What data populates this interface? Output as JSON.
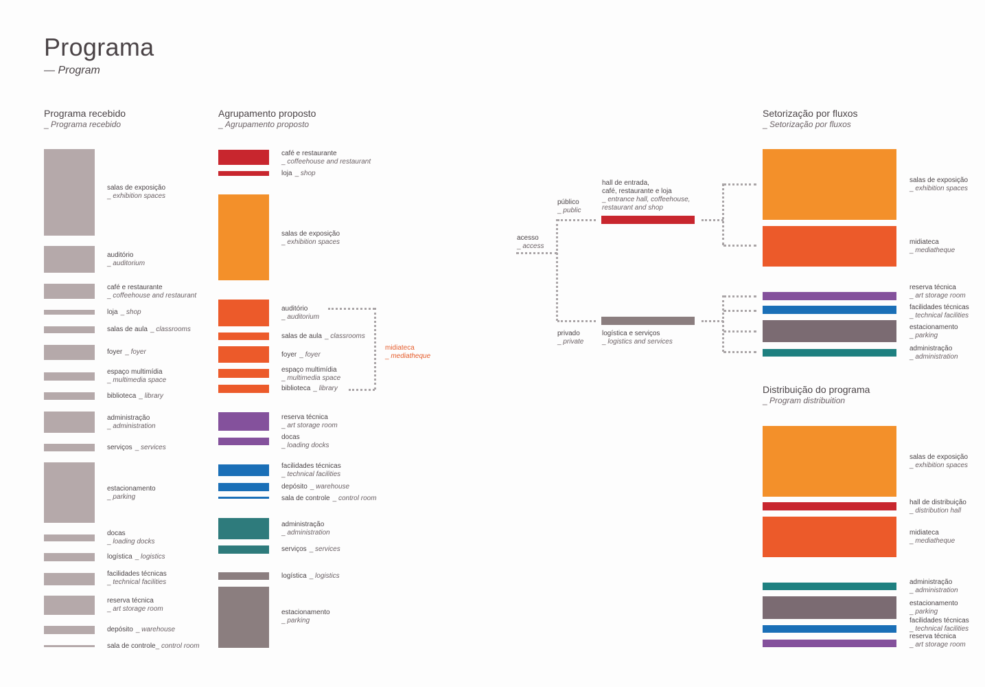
{
  "page": {
    "title": "Programa",
    "subtitle": "— Program"
  },
  "colors": {
    "grey": "#b5a9aa",
    "red": "#c8262e",
    "orange": "#f3902a",
    "orange_red": "#ec5a2a",
    "purple": "#84519c",
    "blue": "#1a6fb7",
    "teal": "#2e7b7c",
    "mauve": "#8b7e7f"
  },
  "received": {
    "title": "Programa recebido",
    "title_en": "Programa recebido",
    "items": [
      {
        "pt": "salas de exposição",
        "en": "exhibition spaces"
      },
      {
        "pt": "auditório",
        "en": "auditorium"
      },
      {
        "pt": "café e restaurante",
        "en": "coffeehouse and restaurant"
      },
      {
        "pt": "loja",
        "en": "shop"
      },
      {
        "pt": "salas de aula",
        "en": "classrooms"
      },
      {
        "pt": "foyer",
        "en": "foyer"
      },
      {
        "pt": "espaço multimídia",
        "en": "multimedia space"
      },
      {
        "pt": "biblioteca",
        "en": "library"
      },
      {
        "pt": "administração",
        "en": "administration"
      },
      {
        "pt": "serviços",
        "en": "services"
      },
      {
        "pt": "estacionamento",
        "en": "parking"
      },
      {
        "pt": "docas",
        "en": "loading docks"
      },
      {
        "pt": "logística",
        "en": "logistics"
      },
      {
        "pt": "facilidades técnicas",
        "en": "technical facilities"
      },
      {
        "pt": "reserva técnica",
        "en": "art storage room"
      },
      {
        "pt": "depósito",
        "en": "warehouse"
      },
      {
        "pt": "sala de controle",
        "en": "control room"
      }
    ]
  },
  "grouping": {
    "title": "Agrupamento proposto",
    "title_en": "Agrupamento proposto",
    "items": [
      {
        "pt": "café e restaurante",
        "en": "coffeehouse and restaurant"
      },
      {
        "pt": "loja",
        "en": "shop"
      },
      {
        "pt": "salas de exposição",
        "en": "exhibition spaces"
      },
      {
        "pt": "auditório",
        "en": "auditorium"
      },
      {
        "pt": "salas de aula",
        "en": "classrooms"
      },
      {
        "pt": "foyer",
        "en": "foyer"
      },
      {
        "pt": "espaço multimídia",
        "en": "multimedia space"
      },
      {
        "pt": "biblioteca",
        "en": "library"
      },
      {
        "pt": "reserva técnica",
        "en": "art storage room"
      },
      {
        "pt": "docas",
        "en": "loading docks"
      },
      {
        "pt": "facilidades técnicas",
        "en": "technical facilities"
      },
      {
        "pt": "depósito",
        "en": "warehouse"
      },
      {
        "pt": "sala de controle",
        "en": "control room"
      },
      {
        "pt": "administração",
        "en": "administration"
      },
      {
        "pt": "serviços",
        "en": "services"
      },
      {
        "pt": "logística",
        "en": "logistics"
      },
      {
        "pt": "estacionamento",
        "en": "parking"
      }
    ],
    "mediatheque": {
      "pt": "midiateca",
      "en": "mediatheque"
    }
  },
  "flows": {
    "title": "Setorização por fluxos",
    "title_en": "Setorização por fluxos",
    "access": {
      "pt": "acesso",
      "en": "access"
    },
    "public": {
      "pt": "público",
      "en": "public"
    },
    "private": {
      "pt": "privado",
      "en": "private"
    },
    "hall": {
      "pt_line1": "hall de entrada,",
      "pt_line2": "café, restaurante e loja",
      "en_line1": "entrance hall, coffeehouse,",
      "en_line2": "restaurant and shop"
    },
    "logistics": {
      "pt": "logística e serviços",
      "en": "logistics and services"
    },
    "items": [
      {
        "pt": "salas de exposição",
        "en": "exhibition spaces"
      },
      {
        "pt": "midiateca",
        "en": "mediatheque"
      },
      {
        "pt": "reserva técnica",
        "en": "art storage room"
      },
      {
        "pt": "facilidades técnicas",
        "en": "technical facilities"
      },
      {
        "pt": "estacionamento",
        "en": "parking"
      },
      {
        "pt": "administração",
        "en": "administration"
      }
    ]
  },
  "distribution": {
    "title": "Distribuição do programa",
    "title_en": "Program distribuition",
    "items": [
      {
        "pt": "salas de exposição",
        "en": "exhibition spaces"
      },
      {
        "pt": "hall de distribuição",
        "en": "distribution hall"
      },
      {
        "pt": "midiateca",
        "en": "mediatheque"
      },
      {
        "pt": "administração",
        "en": "administration"
      },
      {
        "pt": "estacionamento",
        "en": "parking"
      },
      {
        "pt": "facilidades técnicas",
        "en": "technical facilities"
      },
      {
        "pt": "reserva técnica",
        "en": "art storage room"
      }
    ]
  }
}
